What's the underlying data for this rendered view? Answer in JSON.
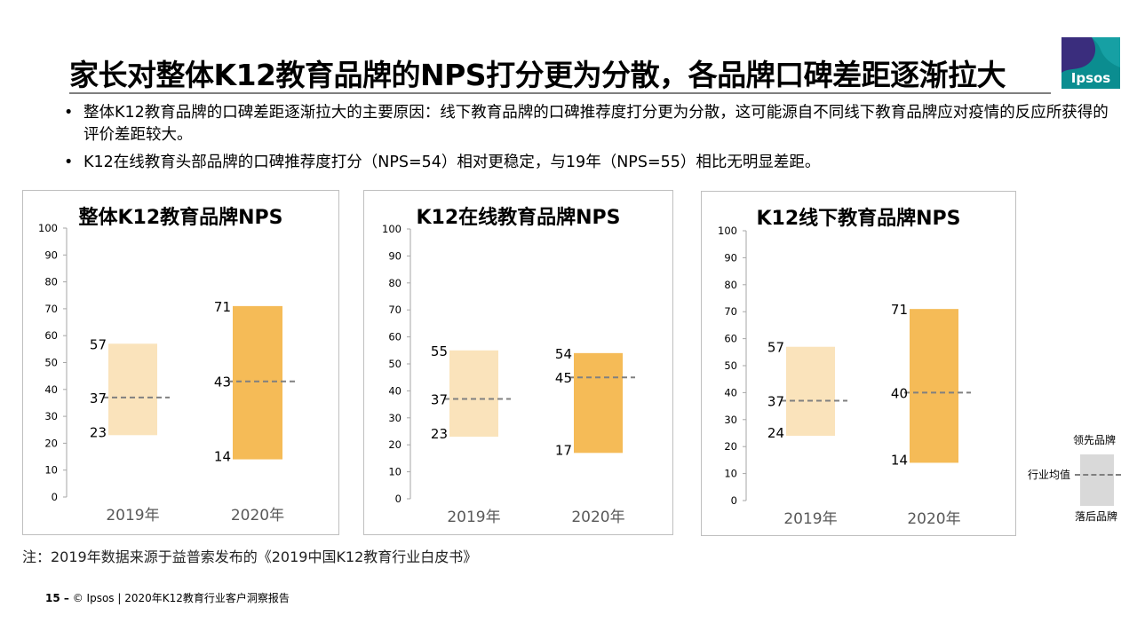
{
  "title": "家长对整体K12教育品牌的NPS打分更为分散，各品牌口碑差距逐渐拉大",
  "logo_text": "Ipsos",
  "bullets": [
    "整体K12教育品牌的口碑差距逐渐拉大的主要原因：线下教育品牌的口碑推荐度打分更为分散，这可能源自不同线下教育品牌应对疫情的反应所获得的评价差距较大。",
    "K12在线教育头部品牌的口碑推荐度打分（NPS=54）相对更稳定，与19年（NPS=55）相比无明显差距。"
  ],
  "chart_data": [
    {
      "type": "bar",
      "title": "整体K12教育品牌NPS",
      "categories": [
        "2019年",
        "2020年"
      ],
      "ylim": [
        0,
        100
      ],
      "yticks": [
        0,
        10,
        20,
        30,
        40,
        50,
        60,
        70,
        80,
        90,
        100
      ],
      "ranges": [
        {
          "high": 57,
          "avg": 37,
          "low": 23,
          "color": "#fae3bb"
        },
        {
          "high": 71,
          "avg": 43,
          "low": 14,
          "color": "#f5bb57"
        }
      ]
    },
    {
      "type": "bar",
      "title": "K12在线教育品牌NPS",
      "categories": [
        "2019年",
        "2020年"
      ],
      "ylim": [
        0,
        100
      ],
      "yticks": [
        0,
        10,
        20,
        30,
        40,
        50,
        60,
        70,
        80,
        90,
        100
      ],
      "ranges": [
        {
          "high": 55,
          "avg": 37,
          "low": 23,
          "color": "#fae3bb"
        },
        {
          "high": 54,
          "avg": 45,
          "low": 17,
          "color": "#f5bb57"
        }
      ]
    },
    {
      "type": "bar",
      "title": "K12线下教育品牌NPS",
      "categories": [
        "2019年",
        "2020年"
      ],
      "ylim": [
        0,
        100
      ],
      "yticks": [
        0,
        10,
        20,
        30,
        40,
        50,
        60,
        70,
        80,
        90,
        100
      ],
      "ranges": [
        {
          "high": 57,
          "avg": 37,
          "low": 24,
          "color": "#fae3bb"
        },
        {
          "high": 71,
          "avg": 40,
          "low": 14,
          "color": "#f5bb57"
        }
      ]
    }
  ],
  "legend": {
    "high": "领先品牌",
    "avg": "行业均值",
    "low": "落后品牌"
  },
  "note": "注：2019年数据来源于益普索发布的《2019中国K12教育行业白皮书》",
  "footer": {
    "page": "15 –",
    "text": "© Ipsos | 2020年K12教育行业客户洞察报告"
  },
  "colors": {
    "bar_2019": "#fae3bb",
    "bar_2020": "#f5bb57",
    "avg_line": "#808080",
    "logo": "#0b8d90"
  }
}
